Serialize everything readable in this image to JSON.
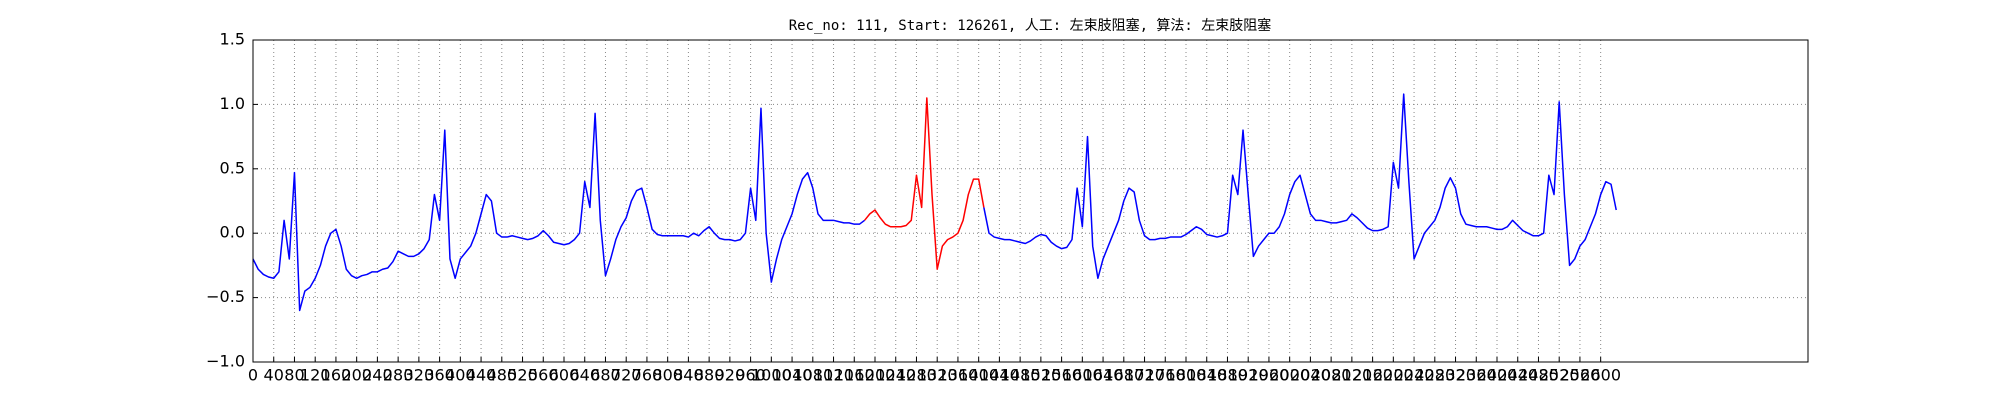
{
  "chart_data": {
    "type": "line",
    "title": "Rec_no: 111, Start: 126261, 人工: 左束肢阻塞, 算法: 左束肢阻塞",
    "xlim": [
      0,
      3000
    ],
    "xticks": [
      0,
      40,
      80,
      120,
      160,
      200,
      240,
      280,
      320,
      360,
      400,
      440,
      480,
      520,
      560,
      600,
      640,
      680,
      720,
      760,
      800,
      840,
      880,
      920,
      960,
      1000,
      1040,
      1080,
      1120,
      1160,
      1200,
      1240,
      1280,
      1320,
      1360,
      1400,
      1440,
      1480,
      1520,
      1560,
      1600,
      1640,
      1680,
      1720,
      1760,
      1800,
      1840,
      1880,
      1920,
      1960,
      2000,
      2040,
      2080,
      2120,
      2160,
      2200,
      2240,
      2280,
      2320,
      2360,
      2400,
      2440,
      2480,
      2520,
      2560,
      2600
    ],
    "ylim": [
      -1,
      1.5
    ],
    "yticks": [
      {
        "value": -1,
        "label": "−1.0"
      },
      {
        "value": -0.5,
        "label": "−0.5"
      },
      {
        "value": 0,
        "label": "0.0"
      },
      {
        "value": 0.5,
        "label": "0.5"
      },
      {
        "value": 1,
        "label": "1.0"
      },
      {
        "value": 1.5,
        "label": "1.5"
      }
    ],
    "grid": true,
    "series": [
      {
        "color": "#0000ff",
        "x": [
          0,
          10,
          20,
          30,
          40,
          50,
          60,
          70,
          80,
          90,
          100,
          110,
          120,
          130,
          140,
          150,
          160,
          170,
          180,
          190,
          200,
          210,
          220,
          230,
          240,
          250,
          260,
          270,
          280,
          290,
          300,
          310,
          320,
          330,
          340,
          350,
          360,
          370,
          380,
          390,
          400,
          410,
          420,
          430,
          440,
          450,
          460,
          470,
          480,
          490,
          500,
          510,
          520,
          530,
          540,
          550,
          560,
          570,
          580,
          590,
          600,
          610,
          620,
          630,
          640,
          650,
          660,
          670,
          680,
          690,
          700,
          710,
          720,
          730,
          740,
          750,
          760,
          770,
          780,
          790,
          800,
          810,
          820,
          830,
          840,
          850,
          860,
          870,
          880,
          890,
          900,
          910,
          920,
          930,
          940,
          950,
          960,
          970,
          980,
          990,
          1000,
          1010,
          1020,
          1030,
          1040,
          1050,
          1060,
          1070,
          1080,
          1090,
          1100,
          1110,
          1120,
          1130,
          1140,
          1150,
          1160,
          1170,
          1180
        ],
        "values": [
          -0.2,
          -0.28,
          -0.32,
          -0.34,
          -0.35,
          -0.3,
          0.1,
          -0.2,
          0.47,
          -0.6,
          -0.45,
          -0.42,
          -0.35,
          -0.25,
          -0.1,
          0.0,
          0.03,
          -0.1,
          -0.28,
          -0.33,
          -0.35,
          -0.33,
          -0.32,
          -0.3,
          -0.3,
          -0.28,
          -0.27,
          -0.22,
          -0.14,
          -0.16,
          -0.18,
          -0.18,
          -0.16,
          -0.12,
          -0.05,
          0.3,
          0.1,
          0.8,
          -0.2,
          -0.35,
          -0.2,
          -0.15,
          -0.1,
          0.0,
          0.15,
          0.3,
          0.25,
          0.0,
          -0.03,
          -0.03,
          -0.02,
          -0.03,
          -0.04,
          -0.05,
          -0.04,
          -0.02,
          0.02,
          -0.02,
          -0.07,
          -0.08,
          -0.09,
          -0.08,
          -0.05,
          0.0,
          0.4,
          0.2,
          0.93,
          0.1,
          -0.33,
          -0.2,
          -0.05,
          0.05,
          0.12,
          0.25,
          0.33,
          0.35,
          0.2,
          0.03,
          -0.01,
          -0.02,
          -0.02,
          -0.02,
          -0.02,
          -0.02,
          -0.03,
          0.0,
          -0.02,
          0.02,
          0.05,
          0.0,
          -0.04,
          -0.05,
          -0.05,
          -0.06,
          -0.05,
          0.0,
          0.35,
          0.1,
          0.97,
          0.0,
          -0.38,
          -0.2,
          -0.05,
          0.05,
          0.15,
          0.3,
          0.42,
          0.47,
          0.35,
          0.15,
          0.1,
          0.1,
          0.1,
          0.09,
          0.08,
          0.08,
          0.07,
          0.07,
          0.1
        ]
      },
      {
        "color": "#ff0000",
        "x": [
          1180,
          1190,
          1200,
          1210,
          1220,
          1230,
          1240,
          1250,
          1260,
          1270,
          1280,
          1290,
          1300,
          1310,
          1320,
          1330,
          1340,
          1350,
          1360,
          1370,
          1380,
          1390,
          1400,
          1410
        ],
        "values": [
          0.1,
          0.15,
          0.18,
          0.12,
          0.07,
          0.05,
          0.05,
          0.05,
          0.06,
          0.1,
          0.45,
          0.2,
          1.05,
          0.3,
          -0.28,
          -0.1,
          -0.05,
          -0.03,
          0.0,
          0.1,
          0.3,
          0.42,
          0.42,
          0.2
        ]
      },
      {
        "color": "#0000ff",
        "x": [
          1410,
          1420,
          1430,
          1440,
          1450,
          1460,
          1470,
          1480,
          1490,
          1500,
          1510,
          1520,
          1530,
          1540,
          1550,
          1560,
          1570,
          1580,
          1590,
          1600,
          1610,
          1620,
          1630,
          1640,
          1650,
          1660,
          1670,
          1680,
          1690,
          1700,
          1710,
          1720,
          1730,
          1740,
          1750,
          1760,
          1770,
          1780,
          1790,
          1800,
          1810,
          1820,
          1830,
          1840,
          1850,
          1860,
          1870,
          1880,
          1890,
          1900,
          1910,
          1920,
          1930,
          1940,
          1950,
          1960,
          1970,
          1980,
          1990,
          2000,
          2010,
          2020,
          2030,
          2040,
          2050,
          2060,
          2070,
          2080,
          2090,
          2100,
          2110,
          2120,
          2130,
          2140,
          2150,
          2160,
          2170,
          2180,
          2190,
          2200,
          2210,
          2220,
          2230,
          2240,
          2250,
          2260,
          2270,
          2280,
          2290,
          2300,
          2310,
          2320,
          2330,
          2340,
          2350,
          2360,
          2370,
          2380,
          2390,
          2400,
          2410,
          2420,
          2430,
          2440,
          2450,
          2460,
          2470,
          2480,
          2490,
          2500,
          2510,
          2520,
          2530,
          2540,
          2550,
          2560,
          2570,
          2580,
          2590,
          2600,
          2610,
          2620,
          2630
        ],
        "values": [
          0.2,
          0.0,
          -0.03,
          -0.04,
          -0.05,
          -0.05,
          -0.06,
          -0.07,
          -0.08,
          -0.06,
          -0.03,
          -0.01,
          -0.02,
          -0.07,
          -0.1,
          -0.12,
          -0.11,
          -0.05,
          0.35,
          0.05,
          0.75,
          -0.1,
          -0.35,
          -0.2,
          -0.1,
          0.0,
          0.1,
          0.25,
          0.35,
          0.32,
          0.1,
          -0.02,
          -0.05,
          -0.05,
          -0.04,
          -0.04,
          -0.03,
          -0.03,
          -0.03,
          -0.01,
          0.02,
          0.05,
          0.03,
          -0.01,
          -0.02,
          -0.03,
          -0.02,
          0.0,
          0.45,
          0.3,
          0.8,
          0.3,
          -0.18,
          -0.1,
          -0.05,
          0.0,
          0.0,
          0.05,
          0.15,
          0.3,
          0.4,
          0.45,
          0.3,
          0.15,
          0.1,
          0.1,
          0.09,
          0.08,
          0.08,
          0.09,
          0.1,
          0.15,
          0.12,
          0.08,
          0.04,
          0.02,
          0.02,
          0.03,
          0.05,
          0.55,
          0.35,
          1.08,
          0.4,
          -0.2,
          -0.1,
          0.0,
          0.05,
          0.1,
          0.2,
          0.35,
          0.43,
          0.35,
          0.15,
          0.07,
          0.06,
          0.05,
          0.05,
          0.05,
          0.04,
          0.03,
          0.03,
          0.05,
          0.1,
          0.06,
          0.02,
          0.0,
          -0.02,
          -0.02,
          0.0,
          0.45,
          0.3,
          1.02,
          0.3,
          -0.25,
          -0.2,
          -0.1,
          -0.05,
          0.05,
          0.15,
          0.3,
          0.4,
          0.38,
          0.18
        ]
      }
    ]
  }
}
